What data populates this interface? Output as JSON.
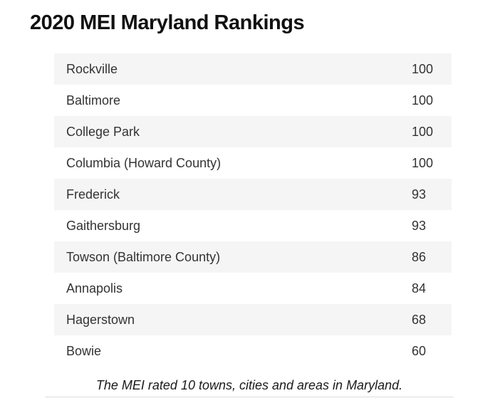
{
  "title": "2020 MEI Maryland Rankings",
  "rankings": [
    {
      "place": "Rockville",
      "score": "100"
    },
    {
      "place": "Baltimore",
      "score": "100"
    },
    {
      "place": "College Park",
      "score": "100"
    },
    {
      "place": "Columbia (Howard County)",
      "score": "100"
    },
    {
      "place": "Frederick",
      "score": "93"
    },
    {
      "place": "Gaithersburg",
      "score": "93"
    },
    {
      "place": "Towson (Baltimore County)",
      "score": "86"
    },
    {
      "place": "Annapolis",
      "score": "84"
    },
    {
      "place": "Hagerstown",
      "score": "68"
    },
    {
      "place": "Bowie",
      "score": "60"
    }
  ],
  "caption": "The MEI rated 10 towns, cities and areas in Maryland.",
  "colors": {
    "row_alt_background": "#f5f5f5",
    "row_background": "#ffffff",
    "title_text": "#111111",
    "body_text": "#333333",
    "caption_text": "#1a1a1a",
    "divider": "#dcdcdc"
  },
  "chart_data": {
    "type": "table",
    "title": "2020 MEI Maryland Rankings",
    "categories": [
      "Rockville",
      "Baltimore",
      "College Park",
      "Columbia (Howard County)",
      "Frederick",
      "Gaithersburg",
      "Towson (Baltimore County)",
      "Annapolis",
      "Hagerstown",
      "Bowie"
    ],
    "values": [
      100,
      100,
      100,
      100,
      93,
      93,
      86,
      84,
      68,
      60
    ],
    "value_range": [
      0,
      100
    ],
    "caption": "The MEI rated 10 towns, cities and areas in Maryland.",
    "layout": "two-column ranking table, zebra striped, scores left-aligned in second column"
  }
}
